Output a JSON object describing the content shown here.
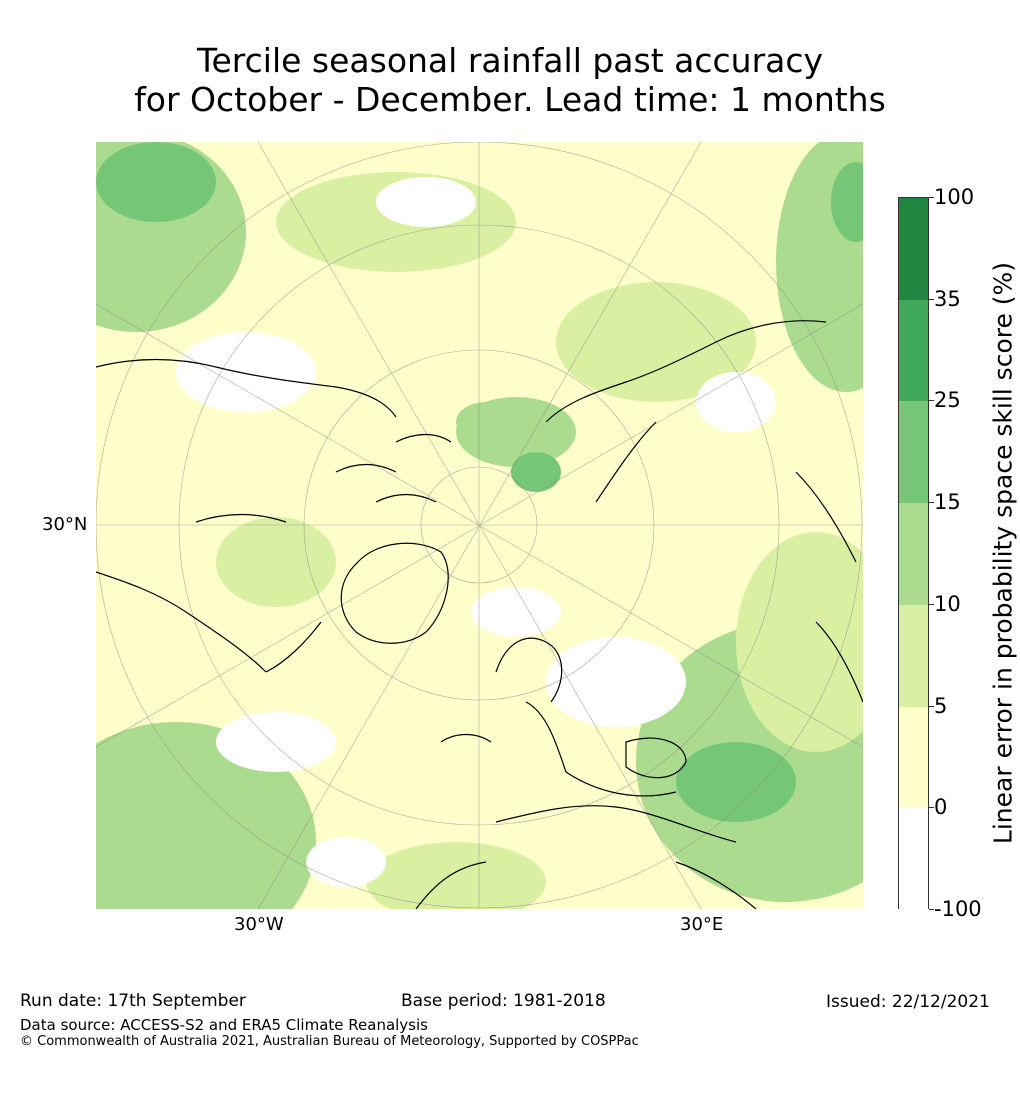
{
  "title": {
    "line1": "Tercile seasonal rainfall past accuracy",
    "line2": "for October - December. Lead time: 1 months"
  },
  "map": {
    "projection": "north polar stereographic",
    "region": "Northern Hemisphere",
    "lat_label": "30°N",
    "lon_labels": [
      "30°W",
      "30°E"
    ]
  },
  "colorbar": {
    "label": "Linear error in probability space skill score (%)",
    "ticks": [
      "100",
      "35",
      "25",
      "15",
      "10",
      "5",
      "0",
      "-100"
    ],
    "colors": [
      "#228540",
      "#3fa85a",
      "#76c677",
      "#aadb8e",
      "#d9f0a2",
      "#ffffcc",
      "#ffffff"
    ]
  },
  "footer": {
    "run_date": "Run date: 17th September",
    "base_period": "Base period: 1981-2018",
    "issued": "Issued: 22/12/2021",
    "data_source": "Data source: ACCESS-S2 and ERA5 Climate Reanalysis",
    "copyright": "© Commonwealth of Australia 2021, Australian Bureau of Meteorology, Supported by COSPPac"
  }
}
